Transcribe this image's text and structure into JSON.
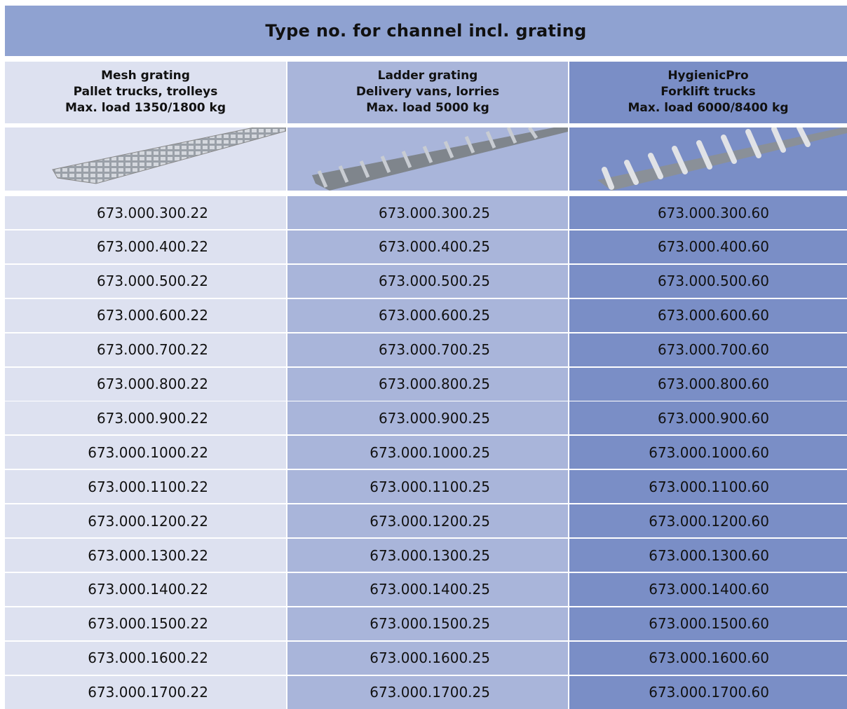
{
  "title": "Type no. for channel incl. grating",
  "columns": [
    {
      "lines": [
        "Mesh grating",
        "Pallet trucks, trolleys",
        "Max. load 1350/1800 kg"
      ]
    },
    {
      "lines": [
        "Ladder grating",
        "Delivery vans, lorries",
        "Max. load 5000 kg"
      ]
    },
    {
      "lines": [
        "HygienicPro",
        "Forklift trucks",
        "Max. load 6000/8400 kg"
      ]
    }
  ],
  "rows": [
    [
      "673.000.300.22",
      "673.000.300.25",
      "673.000.300.60"
    ],
    [
      "673.000.400.22",
      "673.000.400.25",
      "673.000.400.60"
    ],
    [
      "673.000.500.22",
      "673.000.500.25",
      "673.000.500.60"
    ],
    [
      "673.000.600.22",
      "673.000.600.25",
      "673.000.600.60"
    ],
    [
      "673.000.700.22",
      "673.000.700.25",
      "673.000.700.60"
    ],
    [
      "673.000.800.22",
      "673.000.800.25",
      "673.000.800.60"
    ],
    [
      "673.000.900.22",
      "673.000.900.25",
      "673.000.900.60"
    ],
    [
      "673.000.1000.22",
      "673.000.1000.25",
      "673.000.1000.60"
    ],
    [
      "673.000.1100.22",
      "673.000.1100.25",
      "673.000.1100.60"
    ],
    [
      "673.000.1200.22",
      "673.000.1200.25",
      "673.000.1200.60"
    ],
    [
      "673.000.1300.22",
      "673.000.1300.25",
      "673.000.1300.60"
    ],
    [
      "673.000.1400.22",
      "673.000.1400.25",
      "673.000.1400.60"
    ],
    [
      "673.000.1500.22",
      "673.000.1500.25",
      "673.000.1500.60"
    ],
    [
      "673.000.1600.22",
      "673.000.1600.25",
      "673.000.1600.60"
    ],
    [
      "673.000.1700.22",
      "673.000.1700.25",
      "673.000.1700.60"
    ]
  ]
}
